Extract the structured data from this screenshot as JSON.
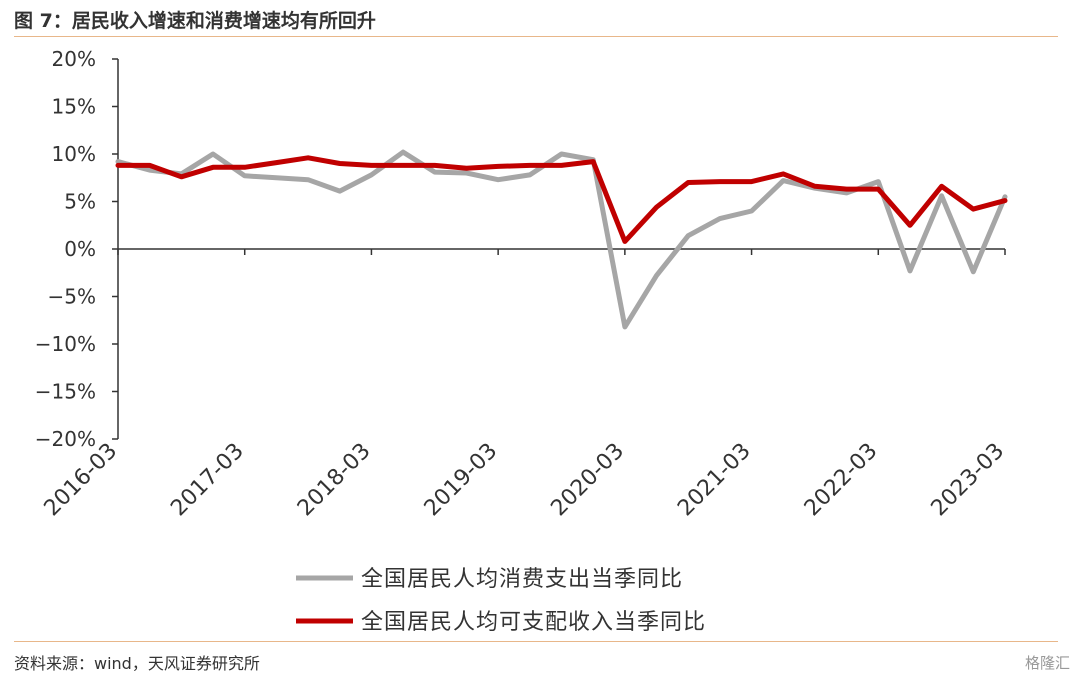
{
  "header": {
    "title": "图 7：居民收入增速和消费增速均有所回升"
  },
  "footer": {
    "source": "资料来源：wind，天风证券研究所",
    "watermark": "格隆汇"
  },
  "chart_data": {
    "type": "line",
    "title": "图 7：居民收入增速和消费增速均有所回升",
    "xlabel": "",
    "ylabel": "",
    "ylim": [
      -20,
      20
    ],
    "y_ticks": [
      "20%",
      "15%",
      "10%",
      "5%",
      "0%",
      "−5%",
      "−10%",
      "−15%",
      "−20%"
    ],
    "y_tick_values": [
      20,
      15,
      10,
      5,
      0,
      -5,
      -10,
      -15,
      -20
    ],
    "x_tick_labels": [
      "2016-03",
      "2017-03",
      "2018-03",
      "2019-03",
      "2020-03",
      "2021-03",
      "2022-03",
      "2023-03"
    ],
    "x": [
      "2016-03",
      "2016-06",
      "2016-09",
      "2016-12",
      "2017-03",
      "2017-06",
      "2017-09",
      "2017-12",
      "2018-03",
      "2018-06",
      "2018-09",
      "2018-12",
      "2019-03",
      "2019-06",
      "2019-09",
      "2019-12",
      "2020-03",
      "2020-06",
      "2020-09",
      "2020-12",
      "2021-03",
      "2021-06",
      "2021-09",
      "2021-12",
      "2022-03",
      "2022-06",
      "2022-09",
      "2022-12",
      "2023-03"
    ],
    "series": [
      {
        "name": "全国居民人均消费支出当季同比",
        "color": "#a6a6a6",
        "values": [
          9.2,
          8.3,
          7.9,
          10.0,
          7.7,
          7.5,
          7.3,
          6.1,
          7.8,
          10.2,
          8.1,
          8.0,
          7.3,
          7.8,
          10.0,
          9.4,
          -8.2,
          -2.8,
          1.4,
          3.2,
          4.0,
          7.2,
          6.4,
          5.9,
          7.1,
          -2.3,
          5.6,
          -2.4,
          5.5
        ]
      },
      {
        "name": "全国居民人均可支配收入当季同比",
        "color": "#c00000",
        "values": [
          8.8,
          8.8,
          7.6,
          8.6,
          8.6,
          9.1,
          9.6,
          9.0,
          8.8,
          8.8,
          8.8,
          8.5,
          8.7,
          8.8,
          8.8,
          9.2,
          0.8,
          4.4,
          7.0,
          7.1,
          7.1,
          7.9,
          6.6,
          6.3,
          6.3,
          2.5,
          6.6,
          4.2,
          5.1
        ]
      }
    ],
    "grid": false,
    "legend_position": "bottom"
  }
}
